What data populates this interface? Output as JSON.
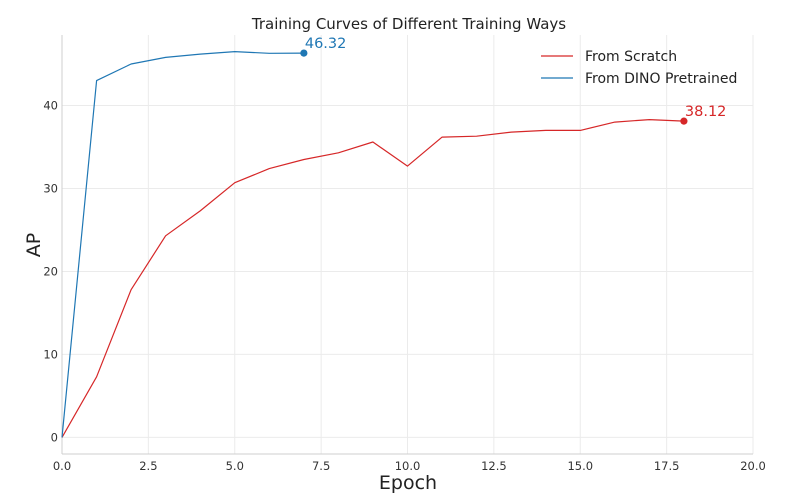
{
  "chart_data": {
    "type": "line",
    "title": "Training Curves of Different Training Ways",
    "xlabel": "Epoch",
    "ylabel": "AP",
    "xlim": [
      0,
      20
    ],
    "ylim": [
      -2,
      48.5
    ],
    "xticks": [
      0,
      2.5,
      5,
      7.5,
      10,
      12.5,
      15,
      17.5,
      20
    ],
    "xtick_labels": [
      "0.0",
      "2.5",
      "5.0",
      "7.5",
      "10.0",
      "12.5",
      "15.0",
      "17.5",
      "20.0"
    ],
    "yticks": [
      0,
      10,
      20,
      30,
      40
    ],
    "ytick_labels": [
      "0",
      "10",
      "20",
      "30",
      "40"
    ],
    "grid": true,
    "legend_position": "top-right",
    "series": [
      {
        "name": "From Scratch",
        "color": "#d62728",
        "x": [
          0,
          1,
          2,
          3,
          4,
          5,
          6,
          7,
          8,
          9,
          10,
          11,
          12,
          13,
          14,
          15,
          16,
          17,
          18
        ],
        "y": [
          0,
          7.3,
          17.8,
          24.3,
          27.3,
          30.7,
          32.4,
          33.5,
          34.3,
          35.6,
          32.7,
          36.2,
          36.3,
          36.8,
          37.0,
          37.0,
          38.0,
          38.3,
          38.12
        ],
        "end_label": "38.12"
      },
      {
        "name": "From DINO Pretrained",
        "color": "#1f77b4",
        "x": [
          0,
          1,
          2,
          3,
          4,
          5,
          6,
          7
        ],
        "y": [
          0,
          43.0,
          45.0,
          45.8,
          46.2,
          46.5,
          46.3,
          46.32
        ],
        "end_label": "46.32"
      }
    ]
  }
}
